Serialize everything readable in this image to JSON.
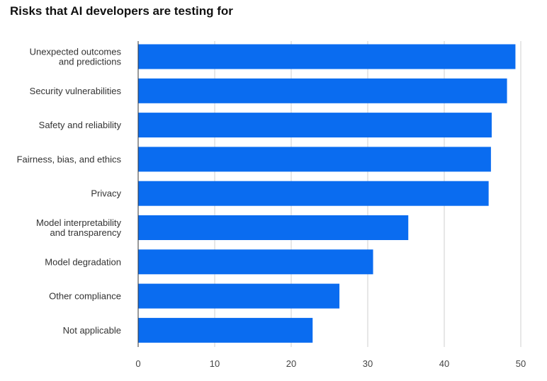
{
  "chart_data": {
    "type": "bar",
    "orientation": "horizontal",
    "title": "Risks that AI developers are testing for",
    "xlabel": "",
    "ylabel": "",
    "xlim": [
      0,
      50
    ],
    "xticks": [
      0,
      10,
      20,
      30,
      40,
      50
    ],
    "grid": "vertical",
    "bar_color": "#0A6CF0",
    "categories": [
      [
        "Unexpected outcomes",
        "and predictions"
      ],
      [
        "Security vulnerabilities"
      ],
      [
        "Safety and reliability"
      ],
      [
        "Fairness, bias, and ethics"
      ],
      [
        "Privacy"
      ],
      [
        "Model interpretability",
        "and transparency"
      ],
      [
        "Model degradation"
      ],
      [
        "Other compliance"
      ],
      [
        "Not applicable"
      ]
    ],
    "values": [
      49.3,
      48.2,
      46.2,
      46.1,
      45.8,
      35.3,
      30.7,
      26.3,
      22.8
    ]
  }
}
